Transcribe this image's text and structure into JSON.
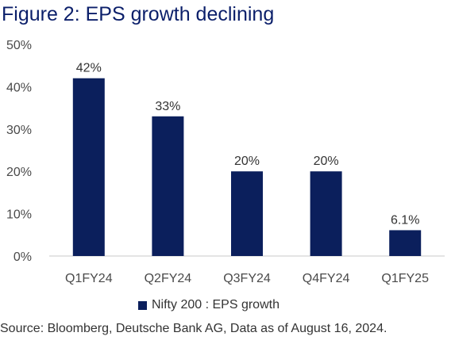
{
  "title": "Figure 2: EPS growth declining",
  "source": "Source: Bloomberg, Deutsche Bank AG, Data as of August 16, 2024.",
  "colors": {
    "bar": "#0b1f5c",
    "title": "#0b1f6a"
  },
  "chart_data": {
    "type": "bar",
    "title": "Figure 2: EPS growth declining",
    "xlabel": "",
    "ylabel": "",
    "categories": [
      "Q1FY24",
      "Q2FY24",
      "Q3FY24",
      "Q4FY24",
      "Q1FY25"
    ],
    "series": [
      {
        "name": "Nifty 200 : EPS growth",
        "values": [
          42,
          33,
          20,
          20,
          6.1
        ],
        "data_labels": [
          "42%",
          "33%",
          "20%",
          "20%",
          "6.1%"
        ]
      }
    ],
    "ylim": [
      0,
      50
    ],
    "yticks": [
      0,
      10,
      20,
      30,
      40,
      50
    ],
    "ytick_labels": [
      "0%",
      "10%",
      "20%",
      "30%",
      "40%",
      "50%"
    ],
    "grid": false,
    "legend_position": "bottom"
  }
}
